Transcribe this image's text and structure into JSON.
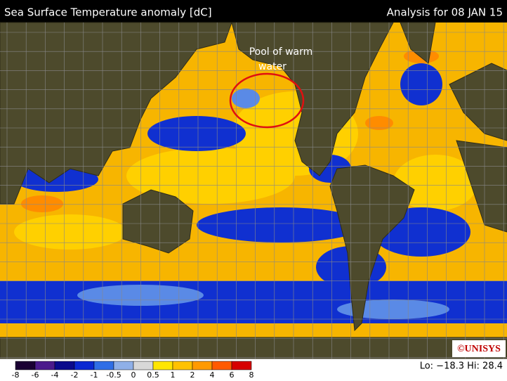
{
  "header": {
    "title": "Sea Surface Temperature anomaly [dC]",
    "date": "Analysis for 08 JAN 15"
  },
  "annotation": {
    "lines": [
      "Pool of warm",
      "water"
    ]
  },
  "legend": {
    "ticks": [
      -8,
      -6,
      -4,
      -2,
      -1,
      -0.5,
      0,
      0.5,
      1,
      2,
      4,
      6,
      8
    ],
    "colors": [
      "#1a0033",
      "#4b1a8c",
      "#0a0a8c",
      "#0a28d2",
      "#2f6ee6",
      "#8fb0e8",
      "#d8d8d8",
      "#ffe600",
      "#ffc200",
      "#ff9a00",
      "#ff5a00",
      "#d60000"
    ]
  },
  "stats": "Lo: −18.3  Hi: 28.4",
  "logo": "©UNISYS"
}
